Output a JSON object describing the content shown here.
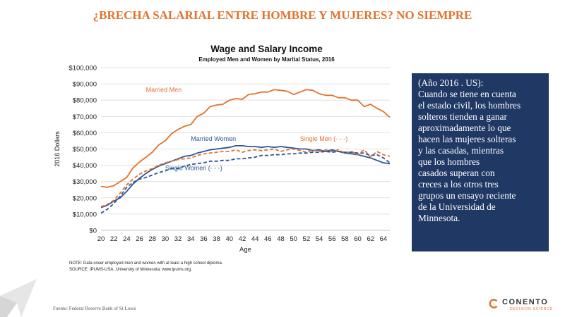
{
  "slide": {
    "title": "¿BRECHA SALARIAL ENTRE HOMBRE Y MUJERES? NO SIEMPRE",
    "source": "Fuente: Federal Reserve Bank of St Louis"
  },
  "notes": {
    "line1": "NOTE: Data cover employed men and women with at least a high school diploma.",
    "line2": "SOURCE: IPUMS-USA, University of Minnesota; www.ipums.org."
  },
  "infobox": {
    "lines": [
      "(Año 2016 . US):",
      "Cuando se tiene en cuenta",
      "el estado civil, los hombres",
      "solteros tienden a ganar",
      "aproximadamente lo que",
      "hacen las mujeres solteras",
      "y las casadas, mientras",
      "que los hombres",
      "casados superan con",
      "creces a los otros tres",
      "grupos un ensayo reciente",
      "de la Universidad de",
      "Minnesota."
    ]
  },
  "logo": {
    "name": "CONENTO",
    "tagline": "DECISION SCIENCE",
    "accent": "#e2722c"
  },
  "chart_data": {
    "type": "line",
    "title": "Wage and Salary Income",
    "subtitle": "Employed Men and Women by Marital Status, 2016",
    "xlabel": "Age",
    "ylabel": "2016 Dollars",
    "xlim": [
      20,
      65
    ],
    "ylim": [
      0,
      100000
    ],
    "xticks": [
      20,
      22,
      24,
      26,
      28,
      30,
      32,
      34,
      36,
      38,
      40,
      42,
      44,
      46,
      48,
      50,
      52,
      54,
      56,
      58,
      60,
      62,
      64
    ],
    "yticks": [
      0,
      10000,
      20000,
      30000,
      40000,
      50000,
      60000,
      70000,
      80000,
      90000,
      100000
    ],
    "ytick_labels": [
      "$0",
      "$10,000",
      "$20,000",
      "$30,000",
      "$40,000",
      "$50,000",
      "$60,000",
      "$70,000",
      "$80,000",
      "$90,000",
      "$100,000"
    ],
    "grid": true,
    "x": [
      20,
      21,
      22,
      23,
      24,
      25,
      26,
      27,
      28,
      29,
      30,
      31,
      32,
      33,
      34,
      35,
      36,
      37,
      38,
      39,
      40,
      41,
      42,
      43,
      44,
      45,
      46,
      47,
      48,
      49,
      50,
      51,
      52,
      53,
      54,
      55,
      56,
      57,
      58,
      59,
      60,
      61,
      62,
      63,
      64,
      65
    ],
    "series": [
      {
        "name": "Married Men",
        "color": "#e2722c",
        "dashed": false,
        "values": [
          27000,
          26500,
          27500,
          30000,
          32500,
          38500,
          42000,
          45000,
          48000,
          52500,
          55000,
          59500,
          62000,
          64000,
          65000,
          70000,
          72000,
          76000,
          77000,
          77500,
          80000,
          81000,
          80500,
          83500,
          84000,
          85000,
          85000,
          86500,
          86000,
          85500,
          83500,
          85000,
          86500,
          86000,
          84000,
          83000,
          83000,
          81500,
          81500,
          80000,
          80000,
          76000,
          77500,
          75000,
          73000,
          69500
        ]
      },
      {
        "name": "Married Women",
        "color": "#2e5597",
        "dashed": false,
        "values": [
          14000,
          15500,
          18000,
          20000,
          24000,
          28500,
          32000,
          35000,
          37500,
          39500,
          41000,
          42500,
          44000,
          45500,
          46000,
          47500,
          48500,
          49500,
          50000,
          50500,
          51000,
          52000,
          52000,
          51500,
          51500,
          51000,
          51500,
          51000,
          51500,
          51000,
          50500,
          50000,
          50000,
          49000,
          49500,
          48500,
          49500,
          48500,
          47500,
          47000,
          46500,
          45500,
          44500,
          43000,
          41500,
          41000
        ]
      },
      {
        "name": "Single Men (- - -)",
        "color": "#e2722c",
        "dashed": true,
        "values": [
          14500,
          16000,
          18500,
          23000,
          28000,
          31500,
          34500,
          36500,
          38000,
          40000,
          41500,
          42500,
          43500,
          44000,
          44500,
          46000,
          47000,
          47500,
          48000,
          48500,
          48500,
          49500,
          48000,
          49000,
          49500,
          49000,
          49500,
          50000,
          48500,
          49500,
          50000,
          49000,
          48000,
          49500,
          48500,
          49500,
          48500,
          49500,
          47500,
          48500,
          46500,
          49500,
          45000,
          48500,
          46500,
          45500
        ]
      },
      {
        "name": "Single Women (- - -)",
        "color": "#2e5597",
        "dashed": true,
        "values": [
          10500,
          13000,
          16500,
          21000,
          26500,
          29500,
          31500,
          32500,
          34000,
          35500,
          36500,
          38000,
          38000,
          39500,
          40500,
          41000,
          41500,
          42500,
          42500,
          43000,
          43000,
          44000,
          44000,
          44500,
          45000,
          46000,
          46000,
          46500,
          46500,
          47000,
          47000,
          47500,
          47500,
          48000,
          48000,
          48500,
          48000,
          48500,
          48000,
          48000,
          47500,
          47500,
          46000,
          46500,
          44500,
          41500
        ]
      }
    ],
    "series_labels": [
      {
        "series": "Married Men",
        "text": "Married Men",
        "at_x": 27,
        "at_y": 85000,
        "color": "#e2722c"
      },
      {
        "series": "Married Women",
        "text": "Married Women",
        "at_x": 34,
        "at_y": 55000,
        "color": "#2e5597"
      },
      {
        "series": "Single Men (- - -)",
        "text": "Single Men (- - -)",
        "at_x": 51,
        "at_y": 55000,
        "color": "#e2722c"
      },
      {
        "series": "Single Women (- - -)",
        "text": "Single Women (- - -)",
        "at_x": 30,
        "at_y": 37000,
        "color": "#2e5597"
      }
    ]
  }
}
